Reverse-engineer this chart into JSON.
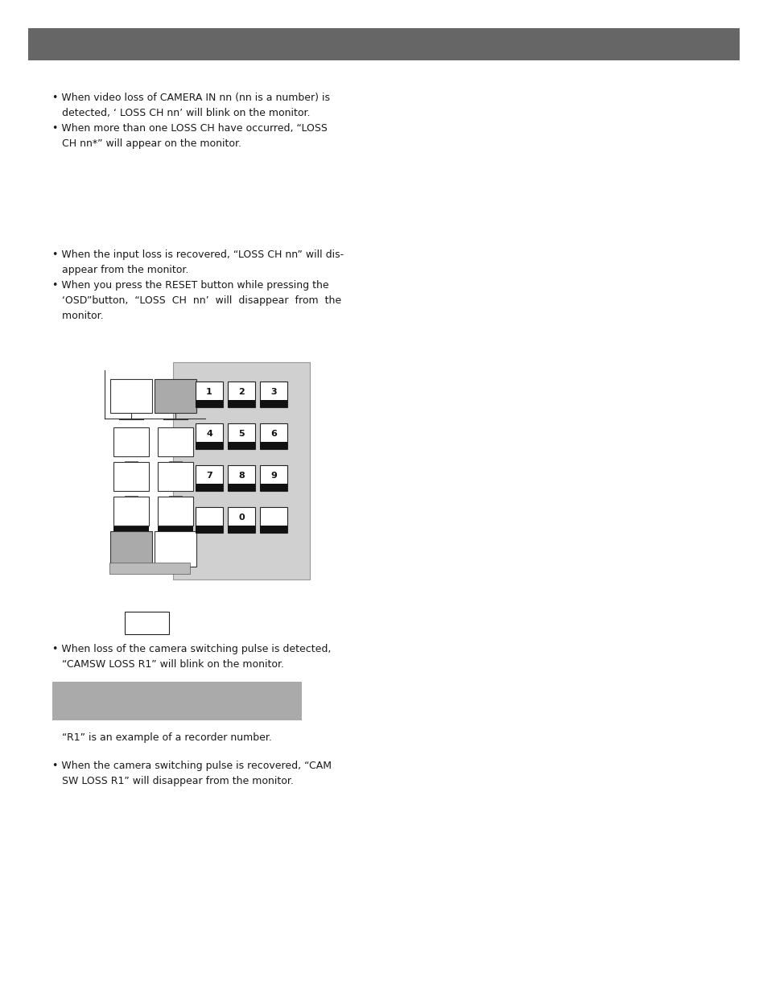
{
  "header_color": "#666666",
  "bg_color": "#ffffff",
  "text_color": "#1a1a1a",
  "bullet1_lines": [
    "• When video loss of CAMERA IN nn (nn is a number) is",
    "   detected, ‘ LOSS CH nn’ will blink on the monitor.",
    "• When more than one LOSS CH have occurred, “LOSS",
    "   CH nn*” will appear on the monitor."
  ],
  "bullet2_lines": [
    "• When the input loss is recovered, “LOSS CH nn” will dis-",
    "   appear from the monitor.",
    "• When you press the RESET button while pressing the",
    "   ‘OSD”button,  “LOSS  CH  nn’  will  disappear  from  the",
    "   monitor."
  ],
  "bullet3_lines": [
    "• When loss of the camera switching pulse is detected,",
    "   “CAMSW LOSS R1” will blink on the monitor."
  ],
  "r1_note": "   “R1” is an example of a recorder number.",
  "bullet4_lines": [
    "• When the camera switching pulse is recovered, “CAM",
    "   SW LOSS R1” will disappear from the monitor."
  ],
  "keypad_color": "#cccccc",
  "button_color": "#ffffff",
  "camsw_display_color": "#aaaaaa"
}
